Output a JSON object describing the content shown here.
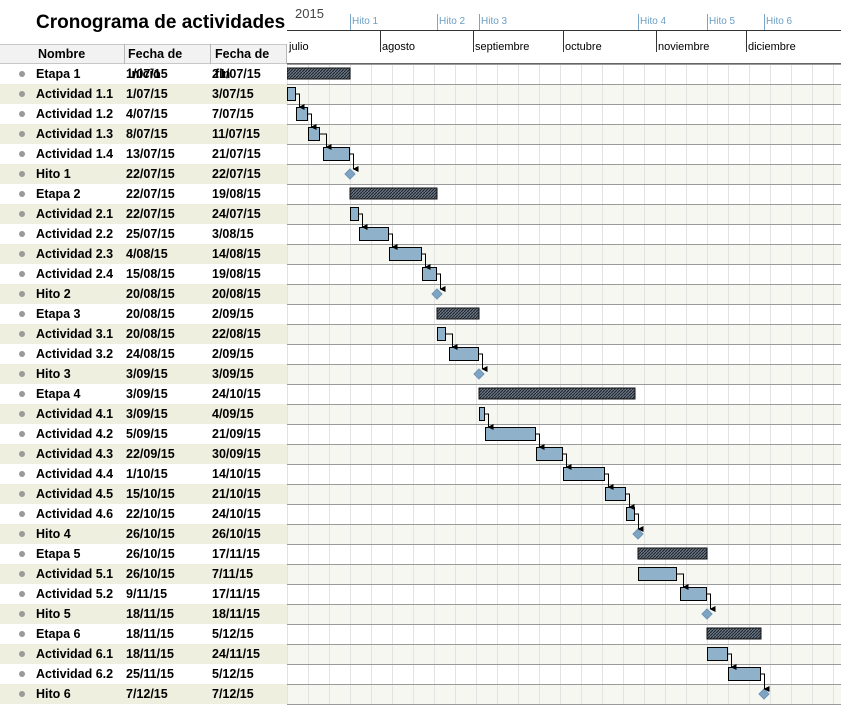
{
  "title": "Cronograma de actividades",
  "columns": [
    "Nombre",
    "Fecha de inicio",
    "Fecha de fin"
  ],
  "colors": {
    "task_fill": "#8fb1ca",
    "summary_fill": "#3d4a5a",
    "milestone": "#7ea4c4",
    "alt_row": "#efefe0"
  },
  "chart_data": {
    "type": "gantt",
    "year_label": "2015",
    "months": [
      "julio",
      "agosto",
      "septiembre",
      "octubre",
      "noviembre",
      "diciembre"
    ],
    "milestone_markers": [
      {
        "label": "Hito 1",
        "date": "2015-07-22"
      },
      {
        "label": "Hito 2",
        "date": "2015-08-20"
      },
      {
        "label": "Hito 3",
        "date": "2015-09-03"
      },
      {
        "label": "Hito 4",
        "date": "2015-10-26"
      },
      {
        "label": "Hito 5",
        "date": "2015-11-18"
      },
      {
        "label": "Hito 6",
        "date": "2015-12-07"
      }
    ],
    "rows": [
      {
        "name": "Etapa 1",
        "start_label": "1/07/15",
        "end_label": "21/07/15",
        "start": "2015-07-01",
        "end": "2015-07-21",
        "kind": "summary"
      },
      {
        "name": "Actividad 1.1",
        "start_label": "1/07/15",
        "end_label": "3/07/15",
        "start": "2015-07-01",
        "end": "2015-07-03",
        "kind": "task"
      },
      {
        "name": "Actividad 1.2",
        "start_label": "4/07/15",
        "end_label": "7/07/15",
        "start": "2015-07-04",
        "end": "2015-07-07",
        "kind": "task"
      },
      {
        "name": "Actividad 1.3",
        "start_label": "8/07/15",
        "end_label": "11/07/15",
        "start": "2015-07-08",
        "end": "2015-07-11",
        "kind": "task"
      },
      {
        "name": "Actividad 1.4",
        "start_label": "13/07/15",
        "end_label": "21/07/15",
        "start": "2015-07-13",
        "end": "2015-07-21",
        "kind": "task"
      },
      {
        "name": "Hito 1",
        "start_label": "22/07/15",
        "end_label": "22/07/15",
        "start": "2015-07-22",
        "end": "2015-07-22",
        "kind": "milestone"
      },
      {
        "name": "Etapa 2",
        "start_label": "22/07/15",
        "end_label": "19/08/15",
        "start": "2015-07-22",
        "end": "2015-08-19",
        "kind": "summary"
      },
      {
        "name": "Actividad 2.1",
        "start_label": "22/07/15",
        "end_label": "24/07/15",
        "start": "2015-07-22",
        "end": "2015-07-24",
        "kind": "task"
      },
      {
        "name": "Actividad 2.2",
        "start_label": "25/07/15",
        "end_label": "3/08/15",
        "start": "2015-07-25",
        "end": "2015-08-03",
        "kind": "task"
      },
      {
        "name": "Actividad 2.3",
        "start_label": "4/08/15",
        "end_label": "14/08/15",
        "start": "2015-08-04",
        "end": "2015-08-14",
        "kind": "task"
      },
      {
        "name": "Actividad 2.4",
        "start_label": "15/08/15",
        "end_label": "19/08/15",
        "start": "2015-08-15",
        "end": "2015-08-19",
        "kind": "task"
      },
      {
        "name": "Hito 2",
        "start_label": "20/08/15",
        "end_label": "20/08/15",
        "start": "2015-08-20",
        "end": "2015-08-20",
        "kind": "milestone"
      },
      {
        "name": "Etapa 3",
        "start_label": "20/08/15",
        "end_label": "2/09/15",
        "start": "2015-08-20",
        "end": "2015-09-02",
        "kind": "summary"
      },
      {
        "name": "Actividad 3.1",
        "start_label": "20/08/15",
        "end_label": "22/08/15",
        "start": "2015-08-20",
        "end": "2015-08-22",
        "kind": "task"
      },
      {
        "name": "Actividad 3.2",
        "start_label": "24/08/15",
        "end_label": "2/09/15",
        "start": "2015-08-24",
        "end": "2015-09-02",
        "kind": "task"
      },
      {
        "name": "Hito 3",
        "start_label": "3/09/15",
        "end_label": "3/09/15",
        "start": "2015-09-03",
        "end": "2015-09-03",
        "kind": "milestone"
      },
      {
        "name": "Etapa 4",
        "start_label": "3/09/15",
        "end_label": "24/10/15",
        "start": "2015-09-03",
        "end": "2015-10-24",
        "kind": "summary"
      },
      {
        "name": "Actividad 4.1",
        "start_label": "3/09/15",
        "end_label": "4/09/15",
        "start": "2015-09-03",
        "end": "2015-09-04",
        "kind": "task"
      },
      {
        "name": "Actividad 4.2",
        "start_label": "5/09/15",
        "end_label": "21/09/15",
        "start": "2015-09-05",
        "end": "2015-09-21",
        "kind": "task"
      },
      {
        "name": "Actividad 4.3",
        "start_label": "22/09/15",
        "end_label": "30/09/15",
        "start": "2015-09-22",
        "end": "2015-09-30",
        "kind": "task"
      },
      {
        "name": "Actividad 4.4",
        "start_label": "1/10/15",
        "end_label": "14/10/15",
        "start": "2015-10-01",
        "end": "2015-10-14",
        "kind": "task"
      },
      {
        "name": "Actividad 4.5",
        "start_label": "15/10/15",
        "end_label": "21/10/15",
        "start": "2015-10-15",
        "end": "2015-10-21",
        "kind": "task"
      },
      {
        "name": "Actividad 4.6",
        "start_label": "22/10/15",
        "end_label": "24/10/15",
        "start": "2015-10-22",
        "end": "2015-10-24",
        "kind": "task"
      },
      {
        "name": "Hito 4",
        "start_label": "26/10/15",
        "end_label": "26/10/15",
        "start": "2015-10-26",
        "end": "2015-10-26",
        "kind": "milestone"
      },
      {
        "name": "Etapa 5",
        "start_label": "26/10/15",
        "end_label": "17/11/15",
        "start": "2015-10-26",
        "end": "2015-11-17",
        "kind": "summary"
      },
      {
        "name": "Actividad 5.1",
        "start_label": "26/10/15",
        "end_label": "7/11/15",
        "start": "2015-10-26",
        "end": "2015-11-07",
        "kind": "task"
      },
      {
        "name": "Actividad 5.2",
        "start_label": "9/11/15",
        "end_label": "17/11/15",
        "start": "2015-11-09",
        "end": "2015-11-17",
        "kind": "task"
      },
      {
        "name": "Hito 5",
        "start_label": "18/11/15",
        "end_label": "18/11/15",
        "start": "2015-11-18",
        "end": "2015-11-18",
        "kind": "milestone"
      },
      {
        "name": "Etapa 6",
        "start_label": "18/11/15",
        "end_label": "5/12/15",
        "start": "2015-11-18",
        "end": "2015-12-05",
        "kind": "summary"
      },
      {
        "name": "Actividad 6.1",
        "start_label": "18/11/15",
        "end_label": "24/11/15",
        "start": "2015-11-18",
        "end": "2015-11-24",
        "kind": "task"
      },
      {
        "name": "Actividad 6.2",
        "start_label": "25/11/15",
        "end_label": "5/12/15",
        "start": "2015-11-25",
        "end": "2015-12-05",
        "kind": "task"
      },
      {
        "name": "Hito 6",
        "start_label": "7/12/15",
        "end_label": "7/12/15",
        "start": "2015-12-07",
        "end": "2015-12-07",
        "kind": "milestone"
      }
    ]
  }
}
